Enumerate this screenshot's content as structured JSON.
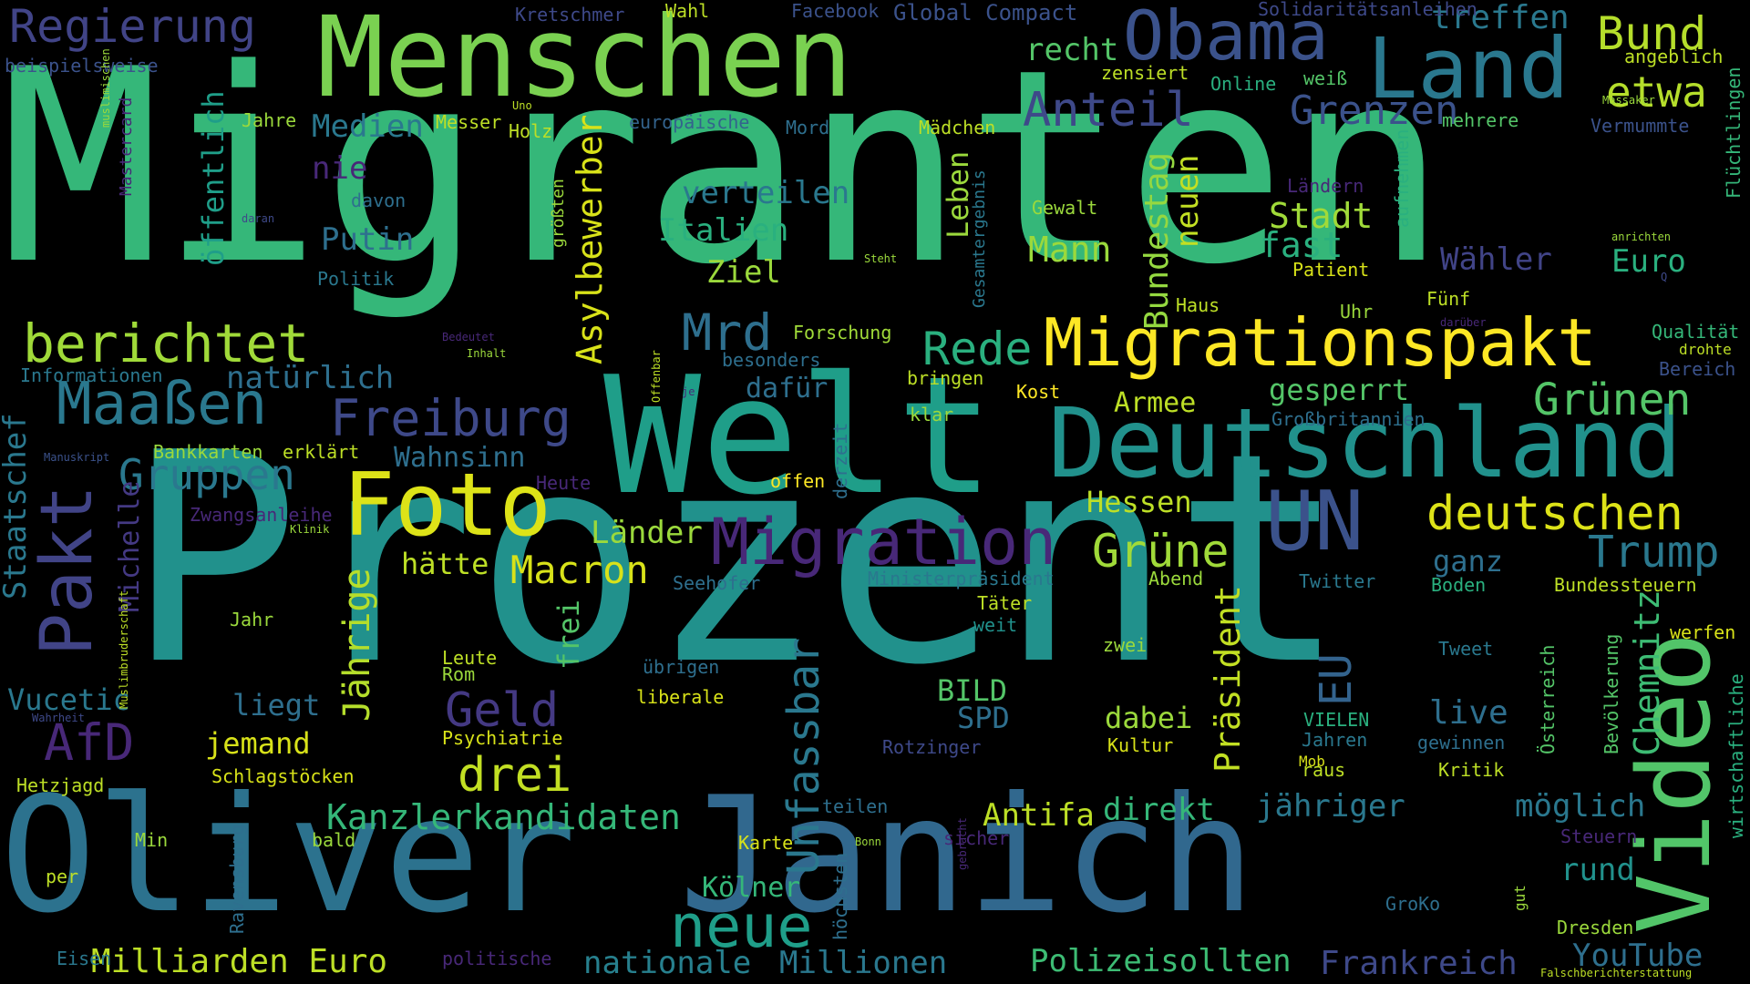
{
  "palette": {
    "background": "#000000",
    "yellow": "#fde725",
    "lime": "#bddf26",
    "green": "#7ad151",
    "green2": "#52c569",
    "teal": "#22a884",
    "cyan": "#21918c",
    "blue": "#2a788e",
    "steel": "#33638d",
    "indigo": "#3e4989",
    "purple": "#482878",
    "violet": "#440154"
  },
  "words": [
    {
      "text": "Migranten",
      "orient": "h",
      "color": "#35b779"
    },
    {
      "text": "Prozent",
      "orient": "h",
      "color": "#21918c"
    },
    {
      "text": "Oliver",
      "orient": "h",
      "color": "#2c728e"
    },
    {
      "text": "Janich",
      "orient": "h",
      "color": "#31688e"
    },
    {
      "text": "Welt",
      "orient": "h",
      "color": "#1f9e89"
    },
    {
      "text": "Menschen",
      "orient": "h",
      "color": "#7ad151"
    },
    {
      "text": "Deutschland",
      "orient": "h",
      "color": "#21918c"
    },
    {
      "text": "Land",
      "orient": "h",
      "color": "#2a788e"
    },
    {
      "text": "Obama",
      "orient": "h",
      "color": "#3b528b"
    },
    {
      "text": "Foto",
      "orient": "h",
      "color": "#dde318"
    },
    {
      "text": "Migrationspakt",
      "orient": "h",
      "color": "#fde725"
    },
    {
      "text": "Pakt",
      "orient": "v",
      "color": "#414487"
    },
    {
      "text": "Video",
      "orient": "v",
      "color": "#52c569"
    },
    {
      "text": "UN",
      "orient": "h",
      "color": "#3b528b"
    },
    {
      "text": "Migration",
      "orient": "h",
      "color": "#482878"
    },
    {
      "text": "Maaßen",
      "orient": "h",
      "color": "#2a788e"
    },
    {
      "text": "Freiburg",
      "orient": "h",
      "color": "#3e4989"
    },
    {
      "text": "Regierung",
      "orient": "h",
      "color": "#414487"
    },
    {
      "text": "berichtet",
      "orient": "h",
      "color": "#a0da39"
    },
    {
      "text": "neue",
      "orient": "h",
      "color": "#1f9e89"
    },
    {
      "text": "Bund",
      "orient": "h",
      "color": "#b5de2b"
    },
    {
      "text": "Anteil",
      "orient": "h",
      "color": "#3e4989"
    },
    {
      "text": "Grenzen",
      "orient": "h",
      "color": "#3b528b"
    },
    {
      "text": "treffen",
      "orient": "h",
      "color": "#2a788e"
    },
    {
      "text": "etwa",
      "orient": "h",
      "color": "#b5de2b"
    },
    {
      "text": "deutschen",
      "orient": "h",
      "color": "#dde318"
    },
    {
      "text": "Grünen",
      "orient": "h",
      "color": "#54c568"
    },
    {
      "text": "Trump",
      "orient": "h",
      "color": "#2a788e"
    },
    {
      "text": "Grüne",
      "orient": "h",
      "color": "#a0da39"
    },
    {
      "text": "AfD",
      "orient": "h",
      "color": "#482878"
    },
    {
      "text": "Geld",
      "orient": "h",
      "color": "#443983"
    },
    {
      "text": "drei",
      "orient": "h",
      "color": "#c2df23"
    },
    {
      "text": "Gruppen",
      "orient": "h",
      "color": "#2a788e"
    },
    {
      "text": "Mrd",
      "orient": "h",
      "color": "#2e6f8e"
    },
    {
      "text": "Rede",
      "orient": "h",
      "color": "#2ab07f"
    },
    {
      "text": "Macron",
      "orient": "h",
      "color": "#d8e219"
    },
    {
      "text": "Kanzlerkandidaten",
      "orient": "h",
      "color": "#35b779"
    },
    {
      "text": "Milliarden Euro",
      "orient": "h",
      "color": "#bddf26"
    },
    {
      "text": "Polizeisollten",
      "orient": "h",
      "color": "#3dbc74"
    },
    {
      "text": "nationale",
      "orient": "h",
      "color": "#27808e"
    },
    {
      "text": "Millionen",
      "orient": "h",
      "color": "#2a788e"
    },
    {
      "text": "Frankreich",
      "orient": "h",
      "color": "#3e4989"
    },
    {
      "text": "YouTube",
      "orient": "h",
      "color": "#2e6f8e"
    },
    {
      "text": "Unfassbar",
      "orient": "v",
      "color": "#2a788e"
    },
    {
      "text": "Asylbewerber",
      "orient": "v",
      "color": "#d8e219"
    },
    {
      "text": "Jährige",
      "orient": "v",
      "color": "#b5de2b"
    },
    {
      "text": "Präsident",
      "orient": "v",
      "color": "#c2df23"
    },
    {
      "text": "EU",
      "orient": "v",
      "color": "#33638d"
    },
    {
      "text": "Chemnitz",
      "orient": "v",
      "color": "#3dbc74"
    },
    {
      "text": "Bundestag",
      "orient": "v",
      "color": "#95d840"
    },
    {
      "text": "neuen",
      "orient": "v",
      "color": "#c2df23"
    },
    {
      "text": "Leben",
      "orient": "v",
      "color": "#9bd93c"
    },
    {
      "text": "öffentlich",
      "orient": "v",
      "color": "#1f9e89"
    },
    {
      "text": "Staatschef",
      "orient": "v",
      "color": "#2a788e"
    },
    {
      "text": "Michelle",
      "orient": "v",
      "color": "#443983"
    },
    {
      "text": "frei",
      "orient": "v",
      "color": "#54c568"
    },
    {
      "text": "Medien",
      "orient": "h",
      "color": "#2a788e"
    },
    {
      "text": "nie",
      "orient": "h",
      "color": "#482878"
    },
    {
      "text": "recht",
      "orient": "h",
      "color": "#54c568"
    },
    {
      "text": "Putin",
      "orient": "h",
      "color": "#2e6f8e"
    },
    {
      "text": "Italien",
      "orient": "h",
      "color": "#2ab07f"
    },
    {
      "text": "verteilen",
      "orient": "h",
      "color": "#2a788e"
    },
    {
      "text": "Stadt",
      "orient": "h",
      "color": "#a0da39"
    },
    {
      "text": "fast",
      "orient": "h",
      "color": "#2ab07f"
    },
    {
      "text": "Mann",
      "orient": "h",
      "color": "#9bd93c"
    },
    {
      "text": "Wähler",
      "orient": "h",
      "color": "#414487"
    },
    {
      "text": "Euro",
      "orient": "h",
      "color": "#2ab07f"
    },
    {
      "text": "Ziel",
      "orient": "h",
      "color": "#9bd93c"
    },
    {
      "text": "natürlich",
      "orient": "h",
      "color": "#2e6f8e"
    },
    {
      "text": "dafür",
      "orient": "h",
      "color": "#2e6f8e"
    },
    {
      "text": "Armee",
      "orient": "h",
      "color": "#bddf26"
    },
    {
      "text": "gesperrt",
      "orient": "h",
      "color": "#54c568"
    },
    {
      "text": "Wahnsinn",
      "orient": "h",
      "color": "#2e6f8e"
    },
    {
      "text": "Hessen",
      "orient": "h",
      "color": "#bddf26"
    },
    {
      "text": "Länder",
      "orient": "h",
      "color": "#9bd93c"
    },
    {
      "text": "hätte",
      "orient": "h",
      "color": "#bddf26"
    },
    {
      "text": "ganz",
      "orient": "h",
      "color": "#2e6f8e"
    },
    {
      "text": "Vucetic",
      "orient": "h",
      "color": "#2a788e"
    },
    {
      "text": "liegt",
      "orient": "h",
      "color": "#2e6f8e"
    },
    {
      "text": "jemand",
      "orient": "h",
      "color": "#d8e219"
    },
    {
      "text": "BILD",
      "orient": "h",
      "color": "#54c568"
    },
    {
      "text": "SPD",
      "orient": "h",
      "color": "#2e6f8e"
    },
    {
      "text": "dabei",
      "orient": "h",
      "color": "#9bd93c"
    },
    {
      "text": "live",
      "orient": "h",
      "color": "#2e6f8e"
    },
    {
      "text": "Antifa",
      "orient": "h",
      "color": "#bddf26"
    },
    {
      "text": "direkt",
      "orient": "h",
      "color": "#35b779"
    },
    {
      "text": "jähriger",
      "orient": "h",
      "color": "#2a788e"
    },
    {
      "text": "möglich",
      "orient": "h",
      "color": "#2a788e"
    },
    {
      "text": "rund",
      "orient": "h",
      "color": "#21918c"
    },
    {
      "text": "Kölner",
      "orient": "h",
      "color": "#35b779"
    },
    {
      "text": "Forschung",
      "orient": "h",
      "color": "#a0da39"
    },
    {
      "text": "Kretschmer",
      "orient": "h",
      "color": "#3e4989"
    },
    {
      "text": "Wahl",
      "orient": "h",
      "color": "#bddf26"
    },
    {
      "text": "Facebook",
      "orient": "h",
      "color": "#3b528b"
    },
    {
      "text": "Global Compact",
      "orient": "h",
      "color": "#3b528b"
    },
    {
      "text": "Solidaritätsanleihen",
      "orient": "h",
      "color": "#3e4989"
    },
    {
      "text": "beispielsweise",
      "orient": "h",
      "color": "#3b528b"
    },
    {
      "text": "zensiert",
      "orient": "h",
      "color": "#bddf26"
    },
    {
      "text": "Online",
      "orient": "h",
      "color": "#2ab07f"
    },
    {
      "text": "weiß",
      "orient": "h",
      "color": "#54c568"
    },
    {
      "text": "angeblich",
      "orient": "h",
      "color": "#bddf26"
    },
    {
      "text": "Jahre",
      "orient": "h",
      "color": "#9bd93c"
    },
    {
      "text": "Messer",
      "orient": "h",
      "color": "#bddf26"
    },
    {
      "text": "Holz",
      "orient": "h",
      "color": "#bddf26"
    },
    {
      "text": "europäische",
      "orient": "h",
      "color": "#33638d"
    },
    {
      "text": "Mord",
      "orient": "h",
      "color": "#2e6f8e"
    },
    {
      "text": "Mädchen",
      "orient": "h",
      "color": "#bddf26"
    },
    {
      "text": "mehrere",
      "orient": "h",
      "color": "#54c568"
    },
    {
      "text": "Vermummte",
      "orient": "h",
      "color": "#3b528b"
    },
    {
      "text": "davon",
      "orient": "h",
      "color": "#2e6f8e"
    },
    {
      "text": "Politik",
      "orient": "h",
      "color": "#2a788e"
    },
    {
      "text": "Gewalt",
      "orient": "h",
      "color": "#9bd93c"
    },
    {
      "text": "Patient",
      "orient": "h",
      "color": "#d8e219"
    },
    {
      "text": "Haus",
      "orient": "h",
      "color": "#bddf26"
    },
    {
      "text": "Uhr",
      "orient": "h",
      "color": "#9bd93c"
    },
    {
      "text": "Fünf",
      "orient": "h",
      "color": "#bddf26"
    },
    {
      "text": "Ländern",
      "orient": "h",
      "color": "#482878"
    },
    {
      "text": "Qualität",
      "orient": "h",
      "color": "#35b779"
    },
    {
      "text": "drohte",
      "orient": "h",
      "color": "#bddf26"
    },
    {
      "text": "Bereich",
      "orient": "h",
      "color": "#3b528b"
    },
    {
      "text": "Informationen",
      "orient": "h",
      "color": "#2a788e"
    },
    {
      "text": "besonders",
      "orient": "h",
      "color": "#2e6f8e"
    },
    {
      "text": "bringen",
      "orient": "h",
      "color": "#bddf26"
    },
    {
      "text": "Kost",
      "orient": "h",
      "color": "#fde725"
    },
    {
      "text": "klar",
      "orient": "h",
      "color": "#9bd93c"
    },
    {
      "text": "Großbritannien",
      "orient": "h",
      "color": "#2e6f8e"
    },
    {
      "text": "Bankkarten",
      "orient": "h",
      "color": "#9bd93c"
    },
    {
      "text": "erklärt",
      "orient": "h",
      "color": "#bddf26"
    },
    {
      "text": "offen",
      "orient": "h",
      "color": "#fde725"
    },
    {
      "text": "Heute",
      "orient": "h",
      "color": "#482878"
    },
    {
      "text": "Zwangsanleihe",
      "orient": "h",
      "color": "#482878"
    },
    {
      "text": "Seehofer",
      "orient": "h",
      "color": "#2e6f8e"
    },
    {
      "text": "Ministerpräsident",
      "orient": "h",
      "color": "#2a788e"
    },
    {
      "text": "Abend",
      "orient": "h",
      "color": "#9bd93c"
    },
    {
      "text": "Twitter",
      "orient": "h",
      "color": "#2a788e"
    },
    {
      "text": "Boden",
      "orient": "h",
      "color": "#2ab07f"
    },
    {
      "text": "Bundessteuern",
      "orient": "h",
      "color": "#bddf26"
    },
    {
      "text": "Täter",
      "orient": "h",
      "color": "#bddf26"
    },
    {
      "text": "weit",
      "orient": "h",
      "color": "#21918c"
    },
    {
      "text": "werfen",
      "orient": "h",
      "color": "#d8e219"
    },
    {
      "text": "Jahr",
      "orient": "h",
      "color": "#9bd93c"
    },
    {
      "text": "Leute",
      "orient": "h",
      "color": "#bddf26"
    },
    {
      "text": "Rom",
      "orient": "h",
      "color": "#9bd93c"
    },
    {
      "text": "übrigen",
      "orient": "h",
      "color": "#2e6f8e"
    },
    {
      "text": "zwei",
      "orient": "h",
      "color": "#9bd93c"
    },
    {
      "text": "Tweet",
      "orient": "h",
      "color": "#2a788e"
    },
    {
      "text": "liberale",
      "orient": "h",
      "color": "#d8e219"
    },
    {
      "text": "VIELEN",
      "orient": "h",
      "color": "#2ab07f"
    },
    {
      "text": "Jahren",
      "orient": "h",
      "color": "#2a788e"
    },
    {
      "text": "gewinnen",
      "orient": "h",
      "color": "#2e6f8e"
    },
    {
      "text": "Psychiatrie",
      "orient": "h",
      "color": "#d8e219"
    },
    {
      "text": "Rotzinger",
      "orient": "h",
      "color": "#3e4989"
    },
    {
      "text": "Kultur",
      "orient": "h",
      "color": "#d8e219"
    },
    {
      "text": "raus",
      "orient": "h",
      "color": "#bddf26"
    },
    {
      "text": "Kritik",
      "orient": "h",
      "color": "#bddf26"
    },
    {
      "text": "Schlagstöcken",
      "orient": "h",
      "color": "#d8e219"
    },
    {
      "text": "Hetzjagd",
      "orient": "h",
      "color": "#bddf26"
    },
    {
      "text": "teilen",
      "orient": "h",
      "color": "#2e6f8e"
    },
    {
      "text": "Min",
      "orient": "h",
      "color": "#9bd93c"
    },
    {
      "text": "bald",
      "orient": "h",
      "color": "#9bd93c"
    },
    {
      "text": "Karte",
      "orient": "h",
      "color": "#d8e219"
    },
    {
      "text": "sicher",
      "orient": "h",
      "color": "#482878"
    },
    {
      "text": "Steuern",
      "orient": "h",
      "color": "#482878"
    },
    {
      "text": "per",
      "orient": "h",
      "color": "#bddf26"
    },
    {
      "text": "GroKo",
      "orient": "h",
      "color": "#2e6f8e"
    },
    {
      "text": "Dresden",
      "orient": "h",
      "color": "#9bd93c"
    },
    {
      "text": "Eisen",
      "orient": "h",
      "color": "#2a788e"
    },
    {
      "text": "politische",
      "orient": "h",
      "color": "#482878"
    },
    {
      "text": "Falschberichterstattung",
      "orient": "h",
      "color": "#bddf26"
    },
    {
      "text": "Manuskript",
      "orient": "h",
      "color": "#3b528b"
    },
    {
      "text": "Klinik",
      "orient": "h",
      "color": "#9bd93c"
    },
    {
      "text": "Wahrheit",
      "orient": "h",
      "color": "#3e4989"
    },
    {
      "text": "daran",
      "orient": "h",
      "color": "#3e4989"
    },
    {
      "text": "Steht",
      "orient": "h",
      "color": "#9bd93c"
    },
    {
      "text": "anrichten",
      "orient": "h",
      "color": "#9bd93c"
    },
    {
      "text": "Bedeutet",
      "orient": "h",
      "color": "#482878"
    },
    {
      "text": "Inhalt",
      "orient": "h",
      "color": "#9bd93c"
    },
    {
      "text": "Massaker",
      "orient": "h",
      "color": "#9bd93c"
    },
    {
      "text": "Uno",
      "orient": "h",
      "color": "#bddf26"
    },
    {
      "text": "je",
      "orient": "h",
      "color": "#482878"
    },
    {
      "text": "darüber",
      "orient": "h",
      "color": "#482878"
    },
    {
      "text": "Bonn",
      "orient": "h",
      "color": "#9bd93c"
    },
    {
      "text": "Q",
      "orient": "h",
      "color": "#3e4989"
    },
    {
      "text": "Mob",
      "orient": "h",
      "color": "#d8e219"
    },
    {
      "text": "muslimischen",
      "orient": "v",
      "color": "#9bd93c"
    },
    {
      "text": "Mastercard",
      "orient": "v",
      "color": "#482878"
    },
    {
      "text": "größten",
      "orient": "v",
      "color": "#9bd93c"
    },
    {
      "text": "Gesamtergebnis",
      "orient": "v",
      "color": "#2a788e"
    },
    {
      "text": "aufnehmen",
      "orient": "v",
      "color": "#2ab07f"
    },
    {
      "text": "Flüchtlingen",
      "orient": "v",
      "color": "#35b779"
    },
    {
      "text": "Offenbar",
      "orient": "v",
      "color": "#bddf26"
    },
    {
      "text": "derzeit",
      "orient": "v",
      "color": "#2e6f8e"
    },
    {
      "text": "Muslimbruderschaft",
      "orient": "v",
      "color": "#bddf26"
    },
    {
      "text": "Ravensburg",
      "orient": "v",
      "color": "#2e6f8e"
    },
    {
      "text": "höchsten",
      "orient": "v",
      "color": "#2e6f8e"
    },
    {
      "text": "gebracht",
      "orient": "v",
      "color": "#482878"
    },
    {
      "text": "gut",
      "orient": "v",
      "color": "#9bd93c"
    },
    {
      "text": "Österreich",
      "orient": "v",
      "color": "#54c568"
    },
    {
      "text": "Bevölkerung",
      "orient": "v",
      "color": "#54c568"
    },
    {
      "text": "wirtschaftliche",
      "orient": "v",
      "color": "#2ab07f"
    }
  ]
}
